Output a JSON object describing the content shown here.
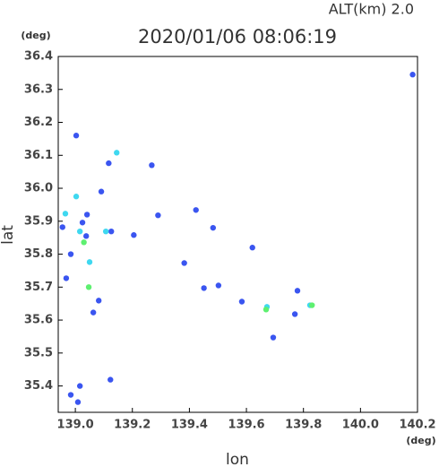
{
  "chart_data": {
    "type": "scatter",
    "title": "2020/01/06 08:06:19",
    "subtitle": "ALT(km)  2.0",
    "y_unit": "(deg)",
    "x_unit": "(deg)",
    "ylabel": "lat",
    "xlabel": "lon",
    "xlim": [
      138.94,
      140.2
    ],
    "ylim": [
      35.32,
      36.4
    ],
    "xticks": [
      {
        "value": 139,
        "label": "139.0"
      },
      139.2,
      139.4,
      139.6,
      139.8,
      {
        "value": 140,
        "label": "140.0"
      },
      140.2
    ],
    "yticks": [
      {
        "value": 35.4,
        "label": "35.4"
      },
      35.5,
      35.6,
      35.7,
      35.8,
      35.9,
      {
        "value": 36,
        "label": "36.0"
      },
      36.1,
      36.2,
      36.3,
      36.4
    ],
    "series": [
      {
        "color": "#3a55f0",
        "x": [
          139.003,
          139.117,
          139.268,
          139.091,
          139.041,
          139.29,
          139.423,
          139.483,
          139.205,
          139.126,
          139.621,
          139.382,
          139.451,
          139.502,
          139.584,
          139.694,
          139.779,
          139.77,
          140.183,
          139.123,
          138.984,
          139.009,
          139.016,
          139.063,
          139.082,
          138.968,
          138.984,
          139.025,
          138.955,
          139.038
        ],
        "y": [
          36.16,
          36.076,
          36.07,
          35.99,
          35.92,
          35.918,
          35.934,
          35.88,
          35.858,
          35.869,
          35.82,
          35.773,
          35.697,
          35.705,
          35.656,
          35.547,
          35.689,
          35.618,
          36.345,
          35.419,
          35.373,
          35.351,
          35.4,
          35.623,
          35.659,
          35.727,
          35.8,
          35.896,
          35.882,
          35.855
        ]
      },
      {
        "color": "#3fd8f0",
        "x": [
          139.145,
          139.003,
          138.965,
          139.107,
          139.05,
          139.672,
          139.823,
          139.016
        ],
        "y": [
          36.108,
          35.975,
          35.923,
          35.869,
          35.776,
          35.64,
          35.645,
          35.869
        ]
      },
      {
        "color": "#5ef070",
        "x": [
          139.047,
          139.03,
          139.669,
          139.83
        ],
        "y": [
          35.7,
          35.836,
          35.632,
          35.645
        ]
      }
    ]
  }
}
